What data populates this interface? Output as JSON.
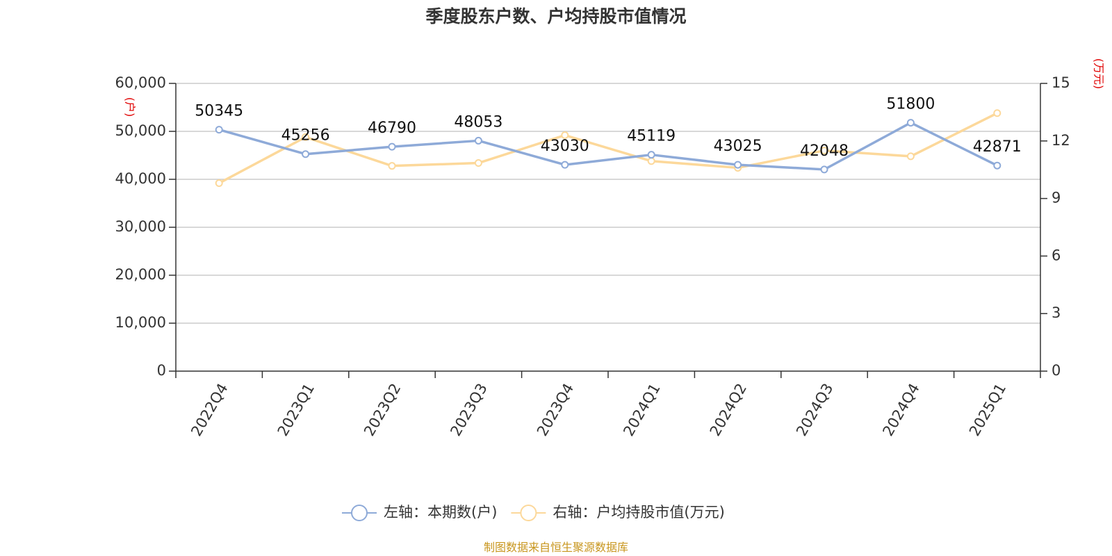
{
  "chart_data": {
    "type": "line",
    "title": "季度股东户数、户均持股市值情况",
    "categories": [
      "2022Q4",
      "2023Q1",
      "2023Q2",
      "2023Q3",
      "2023Q4",
      "2024Q1",
      "2024Q2",
      "2024Q3",
      "2024Q4",
      "2025Q1"
    ],
    "series": [
      {
        "name": "左轴：本期数(户)",
        "axis": "left",
        "color": "#8eaad8",
        "values": [
          50345,
          45256,
          46790,
          48053,
          43030,
          45119,
          43025,
          42048,
          51800,
          42871
        ],
        "labels": [
          "50345",
          "45256",
          "46790",
          "48053",
          "43030",
          "45119",
          "43025",
          "42048",
          "51800",
          "42871"
        ]
      },
      {
        "name": "右轴：户均持股市值(万元)",
        "axis": "right",
        "color": "#fcd89a",
        "values": [
          9.8,
          12.2,
          10.7,
          10.85,
          12.3,
          10.95,
          10.6,
          11.5,
          11.2,
          13.45
        ]
      }
    ],
    "y_left": {
      "unit": "(户)",
      "range": [
        0,
        60000
      ],
      "ticks": [
        0,
        10000,
        20000,
        30000,
        40000,
        50000,
        60000
      ],
      "tick_labels": [
        "0",
        "10,000",
        "20,000",
        "30,000",
        "40,000",
        "50,000",
        "60,000"
      ]
    },
    "y_right": {
      "unit": "(万元)",
      "range": [
        0,
        15
      ],
      "ticks": [
        0,
        3,
        6,
        9,
        12,
        15
      ],
      "tick_labels": [
        "0",
        "3",
        "6",
        "9",
        "12",
        "15"
      ]
    },
    "grid": true,
    "legend_position": "bottom-center",
    "source": "制图数据来自恒生聚源数据库"
  }
}
